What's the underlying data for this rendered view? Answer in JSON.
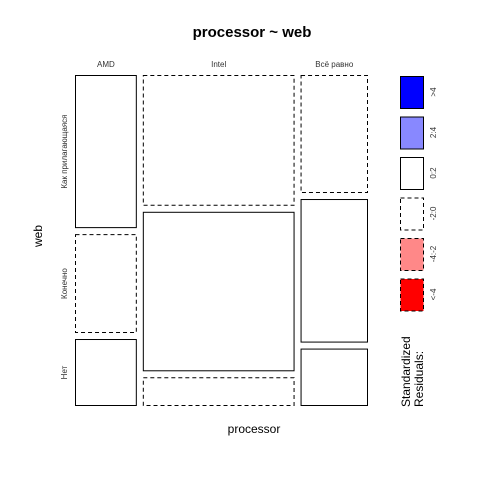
{
  "chart_data": {
    "type": "mosaic",
    "title": "processor ~ web",
    "xlabel": "processor",
    "ylabel": "web",
    "x_levels": [
      "AMD",
      "Intel",
      "Всё равно"
    ],
    "y_levels": [
      "Как прилагающаяся",
      "Конечно",
      "Нет"
    ],
    "x_proportions": [
      0.22,
      0.54,
      0.24
    ],
    "cells": [
      {
        "x": "AMD",
        "y": "Как прилагающаяся",
        "proportion": 0.48,
        "shading": "0:2"
      },
      {
        "x": "AMD",
        "y": "Конечно",
        "proportion": 0.31,
        "shading": "-2:0"
      },
      {
        "x": "AMD",
        "y": "Нет",
        "proportion": 0.21,
        "shading": "0:2"
      },
      {
        "x": "Intel",
        "y": "Как прилагающаяся",
        "proportion": 0.41,
        "shading": "-2:0"
      },
      {
        "x": "Intel",
        "y": "Конечно",
        "proportion": 0.5,
        "shading": "0:2"
      },
      {
        "x": "Intel",
        "y": "Нет",
        "proportion": 0.09,
        "shading": "-2:0"
      },
      {
        "x": "Всё равно",
        "y": "Как прилагающаяся",
        "proportion": 0.37,
        "shading": "-2:0"
      },
      {
        "x": "Всё равно",
        "y": "Конечно",
        "proportion": 0.45,
        "shading": "0:2"
      },
      {
        "x": "Всё равно",
        "y": "Нет",
        "proportion": 0.18,
        "shading": "0:2"
      }
    ],
    "legend": {
      "title_line1": "Standardized",
      "title_line2": "Residuals:",
      "placement": "right",
      "items": [
        {
          "label": ">4",
          "color": "#0000ff",
          "dashed": false
        },
        {
          "label": "2:4",
          "color": "#8888ff",
          "dashed": false
        },
        {
          "label": "0:2",
          "color": "#ffffff",
          "dashed": false
        },
        {
          "label": "-2:0",
          "color": "#ffffff",
          "dashed": true
        },
        {
          "label": "-4:-2",
          "color": "#ff8888",
          "dashed": true
        },
        {
          "label": "<-4",
          "color": "#ff0000",
          "dashed": true
        }
      ]
    }
  }
}
